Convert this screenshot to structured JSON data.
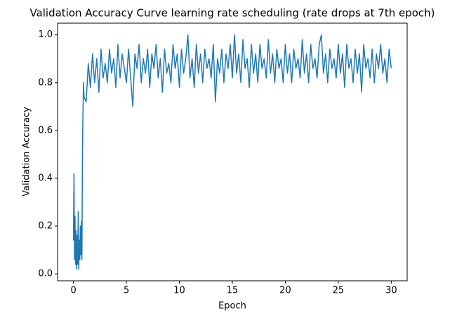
{
  "chart_data": {
    "type": "line",
    "title": "Validation Accuracy Curve learning rate scheduling (rate drops at 7th epoch)",
    "xlabel": "Epoch",
    "ylabel": "Validation Accuracy",
    "color": "#1f77b4",
    "x": [
      0,
      0.05,
      0.1,
      0.15,
      0.2,
      0.25,
      0.3,
      0.35,
      0.4,
      0.45,
      0.5,
      0.55,
      0.6,
      0.65,
      0.7,
      0.75,
      0.8,
      0.85,
      0.9,
      0.95,
      1.0,
      1.2,
      1.4,
      1.6,
      1.8,
      2.0,
      2.2,
      2.4,
      2.6,
      2.8,
      3.0,
      3.2,
      3.4,
      3.6,
      3.8,
      4.0,
      4.2,
      4.4,
      4.6,
      4.8,
      5.0,
      5.2,
      5.4,
      5.6,
      5.8,
      6.0,
      6.2,
      6.4,
      6.6,
      6.8,
      7.0,
      7.2,
      7.4,
      7.6,
      7.8,
      8.0,
      8.2,
      8.4,
      8.6,
      8.8,
      9.0,
      9.2,
      9.4,
      9.6,
      9.8,
      10.0,
      10.2,
      10.4,
      10.6,
      10.8,
      11.0,
      11.2,
      11.4,
      11.6,
      11.8,
      12.0,
      12.2,
      12.4,
      12.6,
      12.8,
      13.0,
      13.2,
      13.4,
      13.6,
      13.8,
      14.0,
      14.2,
      14.4,
      14.6,
      14.8,
      15.0,
      15.2,
      15.4,
      15.6,
      15.8,
      16.0,
      16.2,
      16.4,
      16.6,
      16.8,
      17.0,
      17.2,
      17.4,
      17.6,
      17.8,
      18.0,
      18.2,
      18.4,
      18.6,
      18.8,
      19.0,
      19.2,
      19.4,
      19.6,
      19.8,
      20.0,
      20.2,
      20.4,
      20.6,
      20.8,
      21.0,
      21.2,
      21.4,
      21.6,
      21.8,
      22.0,
      22.2,
      22.4,
      22.6,
      22.8,
      23.0,
      23.2,
      23.4,
      23.6,
      23.8,
      24.0,
      24.2,
      24.4,
      24.6,
      24.8,
      25.0,
      25.2,
      25.4,
      25.6,
      25.8,
      26.0,
      26.2,
      26.4,
      26.6,
      26.8,
      27.0,
      27.2,
      27.4,
      27.6,
      27.8,
      28.0,
      28.2,
      28.4,
      28.6,
      28.8,
      29.0,
      29.2,
      29.4,
      29.6,
      29.8,
      30.0
    ],
    "values": [
      0.14,
      0.42,
      0.06,
      0.24,
      0.04,
      0.18,
      0.02,
      0.16,
      0.04,
      0.26,
      0.02,
      0.14,
      0.06,
      0.2,
      0.08,
      0.22,
      0.06,
      0.5,
      0.68,
      0.8,
      0.74,
      0.72,
      0.88,
      0.78,
      0.92,
      0.8,
      0.9,
      0.76,
      0.94,
      0.82,
      0.88,
      0.8,
      0.94,
      0.84,
      0.9,
      0.78,
      0.96,
      0.82,
      0.92,
      0.86,
      0.8,
      0.94,
      0.82,
      0.7,
      0.92,
      0.86,
      0.96,
      0.8,
      0.9,
      0.84,
      0.94,
      0.78,
      0.92,
      0.86,
      0.96,
      0.82,
      0.9,
      0.76,
      0.94,
      0.84,
      0.88,
      0.8,
      0.96,
      0.86,
      0.92,
      0.78,
      0.94,
      0.84,
      0.9,
      1.0,
      0.82,
      0.9,
      0.78,
      0.96,
      0.84,
      0.92,
      0.8,
      0.94,
      0.86,
      0.9,
      0.82,
      0.96,
      0.72,
      0.9,
      0.84,
      0.94,
      0.8,
      0.92,
      0.86,
      0.96,
      0.82,
      1.0,
      0.84,
      0.92,
      0.8,
      0.98,
      0.86,
      0.9,
      0.78,
      0.96,
      0.84,
      0.92,
      0.8,
      0.96,
      0.86,
      0.9,
      0.82,
      0.98,
      0.84,
      0.92,
      0.8,
      0.94,
      0.86,
      0.9,
      0.8,
      0.96,
      0.84,
      0.92,
      0.8,
      0.94,
      0.86,
      0.9,
      0.82,
      0.98,
      0.84,
      0.92,
      0.8,
      0.96,
      0.86,
      0.9,
      0.82,
      0.96,
      1.0,
      0.84,
      0.92,
      0.8,
      0.94,
      0.86,
      0.9,
      0.82,
      0.96,
      0.84,
      0.92,
      0.78,
      0.96,
      0.86,
      0.9,
      0.8,
      0.94,
      0.84,
      0.92,
      0.76,
      0.96,
      0.86,
      0.9,
      0.82,
      0.94,
      0.8,
      0.92,
      0.86,
      0.96,
      0.84,
      0.9,
      0.8,
      0.94,
      0.86
    ],
    "xlim": [
      -1.5,
      31.5
    ],
    "ylim": [
      -0.029,
      1.049
    ],
    "xticks": [
      0,
      5,
      10,
      15,
      20,
      25,
      30
    ],
    "yticks": [
      {
        "value": 0,
        "label": "0.0"
      },
      0.2,
      0.4,
      0.6,
      0.8,
      {
        "value": 1,
        "label": "1.0"
      }
    ]
  }
}
